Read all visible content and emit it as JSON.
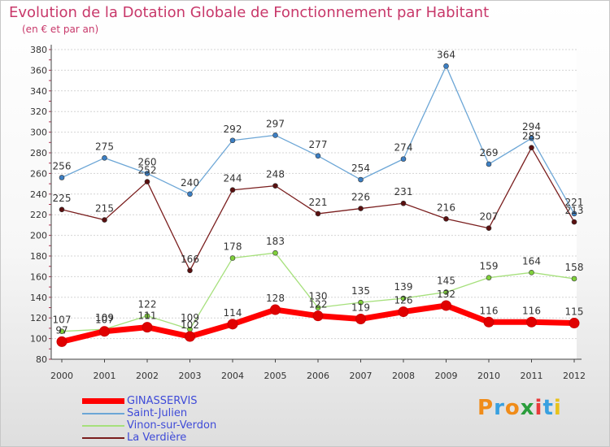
{
  "title": "Evolution de la Dotation Globale de Fonctionnement par Habitant",
  "subtitle": "(en € et par an)",
  "logo": {
    "text": "Proxiti",
    "letters": [
      {
        "ch": "P",
        "color": "#f08c1a"
      },
      {
        "ch": "r",
        "color": "#38a0e0"
      },
      {
        "ch": "o",
        "color": "#f08c1a"
      },
      {
        "ch": "x",
        "color": "#2a9d3c"
      },
      {
        "ch": "i",
        "color": "#e83b3b"
      },
      {
        "ch": "t",
        "color": "#38a0e0"
      },
      {
        "ch": "i",
        "color": "#e8c21a"
      }
    ]
  },
  "chart_data": {
    "type": "line",
    "x": [
      "2000",
      "2001",
      "2002",
      "2003",
      "2004",
      "2005",
      "2006",
      "2007",
      "2008",
      "2009",
      "2010",
      "2011",
      "2012"
    ],
    "ylim": [
      80,
      380
    ],
    "yticks": [
      80,
      100,
      120,
      140,
      160,
      180,
      200,
      220,
      240,
      260,
      280,
      300,
      320,
      340,
      360,
      380
    ],
    "grid": true,
    "legend_position": "bottom-left",
    "series": [
      {
        "name": "GINASSERVIS",
        "color": "#ff0000",
        "marker_color": "#e00000",
        "thick": true,
        "values": [
          97,
          107,
          111,
          102,
          114,
          128,
          122,
          119,
          126,
          132,
          116,
          116,
          115
        ]
      },
      {
        "name": "Saint-Julien",
        "color": "#6ca6d6",
        "marker_color": "#3c7fc4",
        "thick": false,
        "values": [
          256,
          275,
          260,
          240,
          292,
          297,
          277,
          254,
          274,
          364,
          269,
          294,
          221
        ]
      },
      {
        "name": "Vinon-sur-Verdon",
        "color": "#a6e07c",
        "marker_color": "#7fd03a",
        "thick": false,
        "values": [
          107,
          109,
          122,
          109,
          178,
          183,
          130,
          135,
          139,
          145,
          159,
          164,
          158
        ]
      },
      {
        "name": "La Verdière",
        "color": "#7a1e1e",
        "marker_color": "#5a1010",
        "thick": false,
        "values": [
          225,
          215,
          252,
          166,
          244,
          248,
          221,
          226,
          231,
          216,
          207,
          285,
          213
        ]
      }
    ]
  }
}
